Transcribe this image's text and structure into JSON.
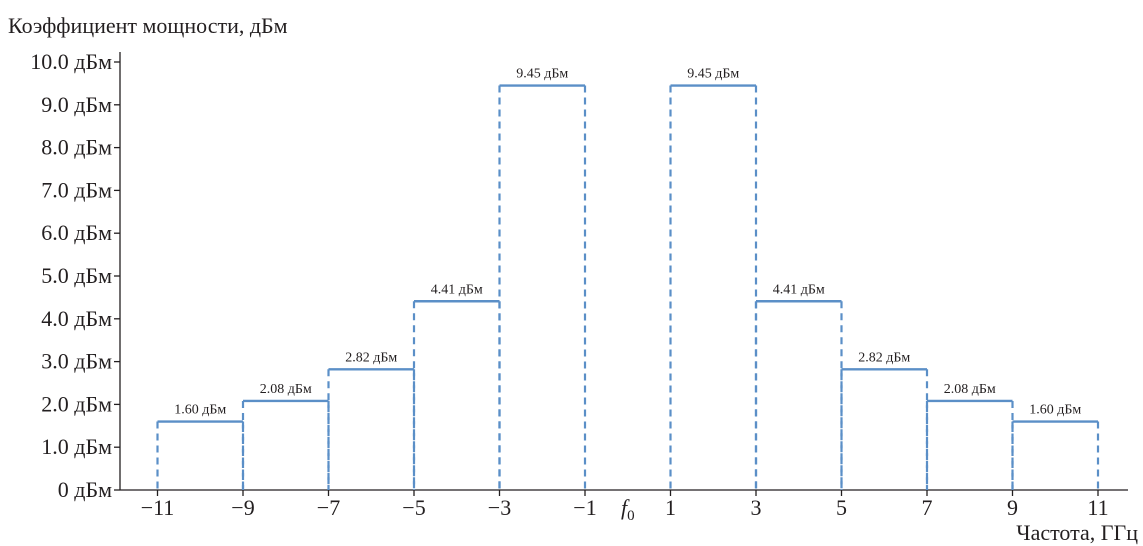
{
  "chart_data": {
    "type": "bar",
    "ylabel": "Коэффициент мощности, дБм",
    "xlabel": "Частота, ГГц",
    "ylim": [
      0,
      10
    ],
    "xlim": [
      -11,
      11
    ],
    "grid": false,
    "yticks": [
      {
        "value": 0,
        "label": "0 дБм"
      },
      {
        "value": 1,
        "label": "1.0 дБм"
      },
      {
        "value": 2,
        "label": "2.0 дБм"
      },
      {
        "value": 3,
        "label": "3.0 дБм"
      },
      {
        "value": 4,
        "label": "4.0 дБм"
      },
      {
        "value": 5,
        "label": "5.0 дБм"
      },
      {
        "value": 6,
        "label": "6.0 дБм"
      },
      {
        "value": 7,
        "label": "7.0 дБм"
      },
      {
        "value": 8,
        "label": "8.0 дБм"
      },
      {
        "value": 9,
        "label": "9.0 дБм"
      },
      {
        "value": 10,
        "label": "10.0 дБм"
      }
    ],
    "xticks": [
      {
        "value": -11,
        "label": "−11"
      },
      {
        "value": -9,
        "label": "−9"
      },
      {
        "value": -7,
        "label": "−7"
      },
      {
        "value": -5,
        "label": "−5"
      },
      {
        "value": -3,
        "label": "−3"
      },
      {
        "value": -1,
        "label": "−1"
      },
      {
        "value": 0,
        "label": "f",
        "sub": "0"
      },
      {
        "value": 1,
        "label": "1"
      },
      {
        "value": 3,
        "label": "3"
      },
      {
        "value": 5,
        "label": "5"
      },
      {
        "value": 7,
        "label": "7"
      },
      {
        "value": 9,
        "label": "9"
      },
      {
        "value": 11,
        "label": "11"
      }
    ],
    "bars": [
      {
        "x0": -11,
        "x1": -9,
        "value": 1.6,
        "label": "1.60 дБм"
      },
      {
        "x0": -9,
        "x1": -7,
        "value": 2.08,
        "label": "2.08 дБм"
      },
      {
        "x0": -7,
        "x1": -5,
        "value": 2.82,
        "label": "2.82 дБм"
      },
      {
        "x0": -5,
        "x1": -3,
        "value": 4.41,
        "label": "4.41 дБм"
      },
      {
        "x0": -3,
        "x1": -1,
        "value": 9.45,
        "label": "9.45 дБм"
      },
      {
        "x0": 1,
        "x1": 3,
        "value": 9.45,
        "label": "9.45 дБм"
      },
      {
        "x0": 3,
        "x1": 5,
        "value": 4.41,
        "label": "4.41 дБм"
      },
      {
        "x0": 5,
        "x1": 7,
        "value": 2.82,
        "label": "2.82 дБм"
      },
      {
        "x0": 7,
        "x1": 9,
        "value": 2.08,
        "label": "2.08 дБм"
      },
      {
        "x0": 9,
        "x1": 11,
        "value": 1.6,
        "label": "1.60 дБм"
      }
    ],
    "colors": {
      "series": "#5b8fc7",
      "axis": "#231f20"
    }
  }
}
